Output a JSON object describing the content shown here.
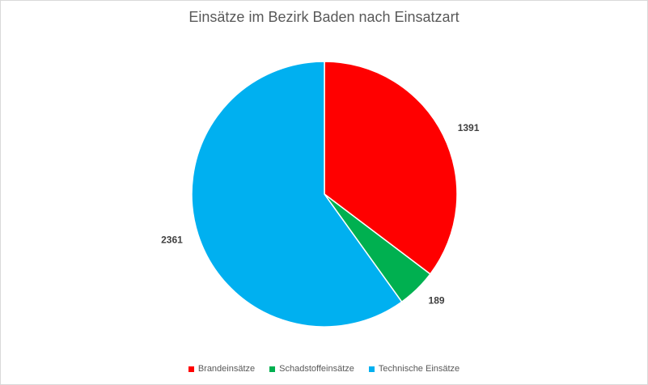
{
  "chart_data": {
    "type": "pie",
    "title": "Einsätze im Bezirk Baden nach Einsatzart",
    "categories": [
      "Brandeinsätze",
      "Schadstoffeinsätze",
      "Technische Einsätze"
    ],
    "values": [
      1391,
      189,
      2361
    ],
    "colors": [
      "#ff0000",
      "#00b050",
      "#00b0f0"
    ],
    "data_labels": [
      "1391",
      "189",
      "2361"
    ],
    "start_angle": "12 o'clock",
    "direction": "clockwise",
    "legend": "bottom"
  }
}
